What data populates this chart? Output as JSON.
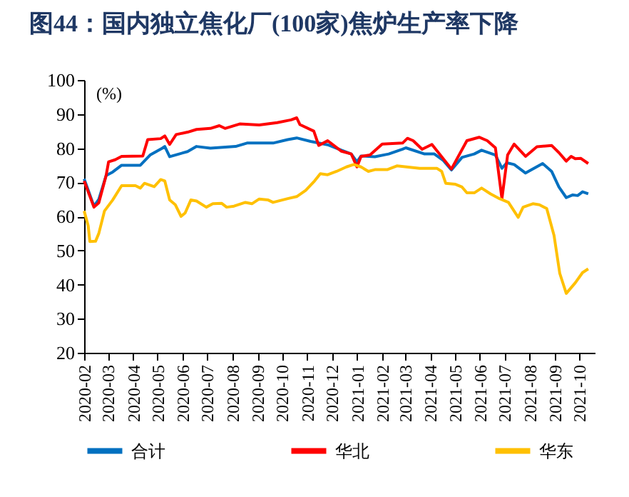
{
  "chart_data": {
    "type": "line",
    "title": "图44：国内独立焦化厂(100家)焦炉生产率下降",
    "ylabel": "(%)",
    "xlim": [
      "2020-02-01",
      "2021-10-20"
    ],
    "xticks": [
      "2020-02",
      "2020-03",
      "2020-04",
      "2020-05",
      "2020-06",
      "2020-07",
      "2020-08",
      "2020-09",
      "2020-10",
      "2020-11",
      "2020-12",
      "2021-01",
      "2021-02",
      "2021-03",
      "2021-04",
      "2021-05",
      "2021-06",
      "2021-07",
      "2021-08",
      "2021-09",
      "2021-10"
    ],
    "ylim": [
      20,
      100
    ],
    "yticks": [
      20,
      30,
      40,
      50,
      60,
      70,
      80,
      90,
      100
    ],
    "grid": false,
    "legend": "bottom",
    "line_style": "solid",
    "marker": "none",
    "series": [
      {
        "name": "合计",
        "color": "#0070c0",
        "x": [
          "2020-02-01",
          "2020-02-13",
          "2020-02-19",
          "2020-02-28",
          "2020-03-07",
          "2020-03-18",
          "2020-04-10",
          "2020-04-14",
          "2020-04-22",
          "2020-05-07",
          "2020-05-10",
          "2020-05-16",
          "2020-05-23",
          "2020-06-07",
          "2020-06-18",
          "2020-07-05",
          "2020-08-05",
          "2020-08-19",
          "2020-09-03",
          "2020-09-20",
          "2020-10-08",
          "2020-10-19",
          "2020-11-05",
          "2020-11-26",
          "2020-12-13",
          "2020-12-25",
          "2021-01-01",
          "2021-01-06",
          "2021-01-23",
          "2021-02-09",
          "2021-02-26",
          "2021-03-02",
          "2021-03-25",
          "2021-04-06",
          "2021-04-17",
          "2021-04-27",
          "2021-05-10",
          "2021-05-25",
          "2021-06-03",
          "2021-06-20",
          "2021-06-28",
          "2021-07-04",
          "2021-07-13",
          "2021-07-27",
          "2021-08-17",
          "2021-08-28",
          "2021-09-06",
          "2021-09-15",
          "2021-09-23",
          "2021-09-29",
          "2021-10-05",
          "2021-10-12"
        ],
        "values": [
          71,
          63,
          65,
          72,
          73,
          75,
          75,
          76,
          78,
          80,
          80.5,
          77.5,
          78,
          79,
          80.5,
          80,
          80.5,
          81.5,
          81.5,
          81.5,
          82.5,
          83,
          82,
          81,
          79.4,
          78.3,
          76,
          77.7,
          77.5,
          78.3,
          79.7,
          80.1,
          78.3,
          78.3,
          76.4,
          73.6,
          77.3,
          78.3,
          79.4,
          78,
          74.1,
          75.7,
          75.2,
          72.7,
          75.5,
          73.2,
          68.6,
          65.5,
          66.3,
          66.1,
          67.2,
          66.6
        ]
      },
      {
        "name": "华北",
        "color": "#ff0000",
        "x": [
          "2020-02-01",
          "2020-02-13",
          "2020-02-19",
          "2020-02-28",
          "2020-03-02",
          "2020-03-10",
          "2020-03-18",
          "2020-04-13",
          "2020-04-19",
          "2020-05-05",
          "2020-05-10",
          "2020-05-16",
          "2020-05-24",
          "2020-06-07",
          "2020-06-18",
          "2020-07-05",
          "2020-07-16",
          "2020-07-23",
          "2020-08-10",
          "2020-09-03",
          "2020-09-25",
          "2020-10-12",
          "2020-10-19",
          "2020-10-23",
          "2020-11-09",
          "2020-11-15",
          "2020-11-26",
          "2020-12-13",
          "2020-12-25",
          "2021-01-01",
          "2021-01-06",
          "2021-01-17",
          "2021-02-01",
          "2021-02-26",
          "2021-03-04",
          "2021-03-11",
          "2021-03-22",
          "2021-04-03",
          "2021-04-27",
          "2021-05-16",
          "2021-05-31",
          "2021-06-10",
          "2021-06-20",
          "2021-06-28",
          "2021-07-05",
          "2021-07-13",
          "2021-07-27",
          "2021-08-10",
          "2021-08-28",
          "2021-09-06",
          "2021-09-15",
          "2021-09-21",
          "2021-09-26",
          "2021-10-03",
          "2021-10-12"
        ],
        "values": [
          70.4,
          62.7,
          64,
          72,
          76,
          76.6,
          77.6,
          77.7,
          82.5,
          82.8,
          83.6,
          81.1,
          84,
          84.7,
          85.5,
          85.8,
          86.6,
          85.8,
          87.1,
          86.8,
          87.5,
          88.3,
          88.9,
          86.9,
          85,
          80.8,
          82.2,
          79.1,
          78.3,
          74.5,
          77.6,
          78,
          81.2,
          81.5,
          82.9,
          82.2,
          79.7,
          81.1,
          73.9,
          82.2,
          83.2,
          82.2,
          80.1,
          65.2,
          78,
          81.2,
          77.6,
          80.4,
          80.8,
          78.7,
          76.2,
          77.6,
          76.9,
          77,
          75.5
        ]
      },
      {
        "name": "华东",
        "color": "#ffc000",
        "x": [
          "2020-02-01",
          "2020-02-06",
          "2020-02-08",
          "2020-02-15",
          "2020-02-19",
          "2020-02-26",
          "2020-03-07",
          "2020-03-18",
          "2020-04-04",
          "2020-04-10",
          "2020-04-15",
          "2020-04-27",
          "2020-05-05",
          "2020-05-10",
          "2020-05-16",
          "2020-05-23",
          "2020-05-30",
          "2020-06-04",
          "2020-06-11",
          "2020-06-18",
          "2020-06-30",
          "2020-07-08",
          "2020-07-19",
          "2020-07-25",
          "2020-08-03",
          "2020-08-17",
          "2020-08-25",
          "2020-09-03",
          "2020-09-14",
          "2020-09-20",
          "2020-10-08",
          "2020-10-19",
          "2020-10-30",
          "2020-11-10",
          "2020-11-17",
          "2020-11-26",
          "2020-12-07",
          "2020-12-19",
          "2020-12-28",
          "2021-01-06",
          "2021-01-15",
          "2021-01-23",
          "2021-02-07",
          "2021-02-19",
          "2021-03-19",
          "2021-04-09",
          "2021-04-15",
          "2021-04-20",
          "2021-05-02",
          "2021-05-10",
          "2021-05-16",
          "2021-05-25",
          "2021-06-03",
          "2021-06-14",
          "2021-06-25",
          "2021-07-06",
          "2021-07-18",
          "2021-07-24",
          "2021-08-05",
          "2021-08-13",
          "2021-08-22",
          "2021-08-31",
          "2021-09-07",
          "2021-09-15",
          "2021-09-26",
          "2021-10-05",
          "2021-10-12"
        ],
        "values": [
          61.6,
          57.2,
          52.6,
          52.7,
          55,
          61.6,
          64.8,
          69,
          69,
          68.3,
          69.7,
          68.7,
          70.8,
          70.4,
          64.8,
          63.4,
          60,
          61,
          64.8,
          64.5,
          62.7,
          63.7,
          63.8,
          62.7,
          63,
          64.1,
          63.7,
          65.1,
          64.8,
          64.1,
          65.2,
          65.8,
          67.6,
          70.4,
          72.5,
          72.2,
          73.2,
          74.5,
          75.2,
          74.5,
          73.2,
          73.7,
          73.7,
          74.8,
          74.1,
          74.1,
          73.2,
          69.7,
          69.4,
          68.6,
          66.9,
          66.9,
          68.3,
          66.6,
          65.2,
          64.1,
          59.7,
          62.7,
          63.7,
          63.4,
          62.3,
          54.4,
          43.3,
          37.4,
          40.5,
          43.5,
          44.6
        ]
      }
    ]
  }
}
